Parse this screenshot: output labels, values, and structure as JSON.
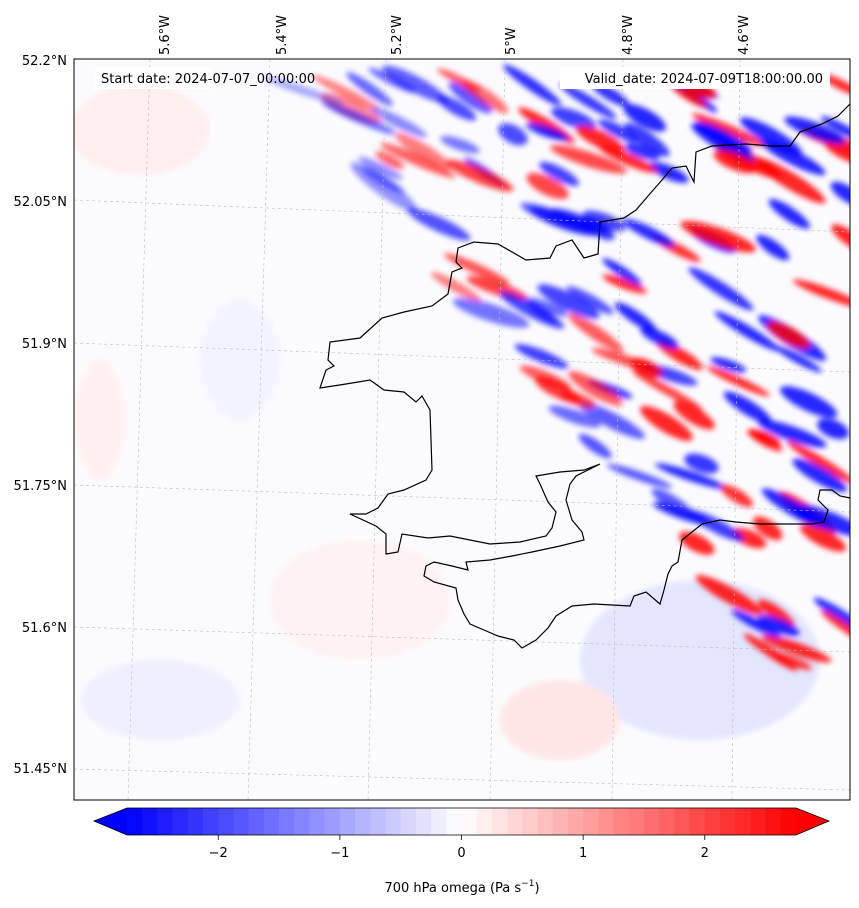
{
  "map": {
    "start_date_label": "Start date: 2024-07-07_00:00:00",
    "valid_date_label": "Valid_date: 2024-07-09T18:00:00.00",
    "lon_ticks": [
      "5.6°W",
      "5.4°W",
      "5.2°W",
      "5°W",
      "4.8°W",
      "4.6°W"
    ],
    "lat_ticks": [
      "52.2°N",
      "52.05°N",
      "51.9°N",
      "51.75°N",
      "51.6°N",
      "51.45°N"
    ],
    "field": "700 hPa omega",
    "coastline_color": "#000000",
    "gridlines": true
  },
  "colorbar": {
    "ticks": [
      "−2",
      "−1",
      "0",
      "1",
      "2"
    ],
    "tick_values": [
      -2,
      -1,
      0,
      1,
      2
    ],
    "range": [
      -2.75,
      2.75
    ],
    "extend": "both",
    "cmap": "bwr",
    "color_low": "#0000ff",
    "color_mid": "#ffffff",
    "color_high": "#ff0000",
    "label_main": "700 hPa omega (Pa s",
    "label_exp": "−1",
    "label_end": ")"
  }
}
